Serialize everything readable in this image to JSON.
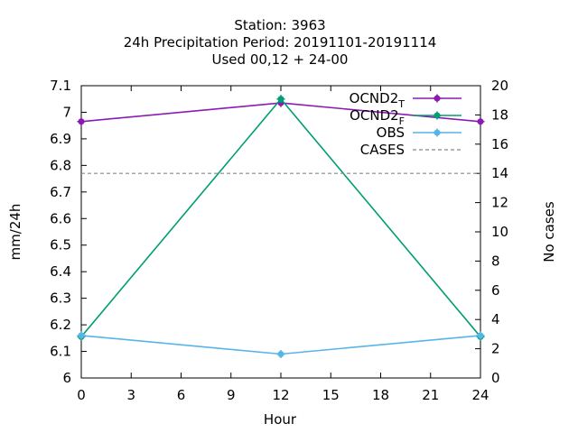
{
  "chart_data": {
    "type": "line",
    "title": [
      "Station:      3963",
      "24h Precipitation    Period: 20191101-20191114",
      "Used  00,12  + 24-00"
    ],
    "xlabel": "Hour",
    "ylabel": "mm/24h",
    "y2label": "No cases",
    "xlim": [
      0,
      24
    ],
    "ylim": [
      6,
      7.1
    ],
    "y2lim": [
      0,
      20
    ],
    "xticks": [
      0,
      3,
      6,
      9,
      12,
      15,
      18,
      21,
      24
    ],
    "yticks": [
      6,
      6.1,
      6.2,
      6.3,
      6.4,
      6.5,
      6.6,
      6.7,
      6.8,
      6.9,
      7,
      7.1
    ],
    "ytick_labels": [
      "6",
      "6.1",
      "6.2",
      "6.3",
      "6.4",
      "6.5",
      "6.6",
      "6.7",
      "6.8",
      "6.9",
      "7",
      "7.1"
    ],
    "y2ticks": [
      0,
      2,
      4,
      6,
      8,
      10,
      12,
      14,
      16,
      18,
      20
    ],
    "grid": false,
    "legend_position": "top-right",
    "series": [
      {
        "name": "OCND2",
        "subscript": "T",
        "axis": "y",
        "color": "#8b1ab3",
        "x": [
          0,
          12,
          24
        ],
        "y": [
          6.965,
          7.035,
          6.965
        ]
      },
      {
        "name": "OCND2",
        "subscript": "F",
        "axis": "y",
        "color": "#009e73",
        "x": [
          0,
          12,
          24
        ],
        "y": [
          6.155,
          7.05,
          6.155
        ]
      },
      {
        "name": "OBS",
        "axis": "y",
        "color": "#56b4e9",
        "x": [
          0,
          12,
          24
        ],
        "y": [
          6.16,
          6.09,
          6.16
        ]
      },
      {
        "name": "CASES",
        "axis": "y2",
        "color": "#888888",
        "dashed": true,
        "x": [
          0,
          24
        ],
        "y": [
          14,
          14
        ]
      }
    ]
  }
}
